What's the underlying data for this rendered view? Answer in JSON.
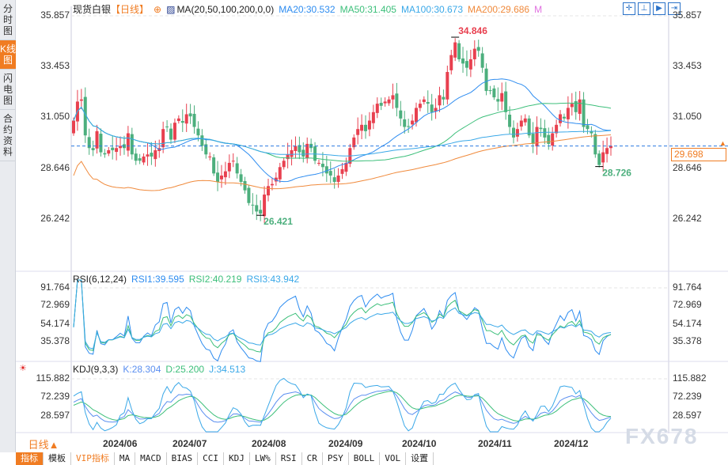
{
  "sidebar": {
    "tabs": [
      {
        "label": "分时图"
      },
      {
        "label": "K线图",
        "active": true
      },
      {
        "label": "闪电图"
      },
      {
        "label": "合约资料"
      }
    ]
  },
  "header": {
    "symbol": "现货白银",
    "period": "【日线】",
    "ma_label": "MA(20,50,100,200,0,0)",
    "ma20": "MA20:30.532",
    "ma50": "MA50:31.405",
    "ma100": "MA100:30.673",
    "ma200": "MA200:29.686",
    "m": "M"
  },
  "colors": {
    "up": "#e8404f",
    "down": "#4caf7d",
    "ma20": "#2d8cf0",
    "ma50": "#3cbf7a",
    "ma100": "#3aa8e8",
    "ma200": "#f08a3c",
    "accent": "#f07c22"
  },
  "tools": [
    "crosshair-icon",
    "zoom-in-icon",
    "zoom-out-icon",
    "scroll-right-icon"
  ],
  "main_axis": {
    "ticks": [
      "35.857",
      "33.453",
      "31.050",
      "28.646",
      "26.242"
    ]
  },
  "current_price": "29.698",
  "annotations": {
    "high": "34.846",
    "low_aug": "26.421",
    "low_dec": "28.726"
  },
  "rsi": {
    "label": "RSI(6,12,24)",
    "rsi1": "RSI1:39.595",
    "rsi2": "RSI2:40.219",
    "rsi3": "RSI3:43.942",
    "ticks": [
      "91.764",
      "72.969",
      "54.174",
      "35.378"
    ]
  },
  "kdj": {
    "label": "KDJ(9,3,3)",
    "k": "K:28.304",
    "d": "D:25.200",
    "j": "J:34.513",
    "ticks": [
      "115.882",
      "72.239",
      "28.597"
    ]
  },
  "dates": [
    "2024/06",
    "2024/07",
    "2024/08",
    "2024/09",
    "2024/10",
    "2024/11",
    "2024/12"
  ],
  "period_selector": "日线▲",
  "toolbar": [
    "指标",
    "模板",
    "VIP指标",
    "MA",
    "MACD",
    "BIAS",
    "CCI",
    "KDJ",
    "LW%",
    "RSI",
    "CR",
    "PSY",
    "BOLL",
    "VOL",
    "设置"
  ],
  "watermark": "FX678",
  "chart_data": {
    "type": "candlestick",
    "price_range": [
      26.242,
      35.857
    ],
    "closes": [
      30.9,
      31.8,
      31.9,
      30.2,
      29.6,
      29.5,
      30.4,
      29.4,
      29.3,
      29.5,
      29.5,
      29.6,
      29.7,
      29.6,
      30.3,
      29.3,
      29.0,
      29.0,
      29.2,
      29.3,
      29.2,
      29.5,
      29.6,
      30.5,
      30.6,
      30.0,
      30.8,
      31.0,
      30.8,
      31.2,
      31.1,
      30.6,
      30.2,
      29.7,
      29.3,
      29.2,
      28.4,
      28.0,
      28.3,
      28.5,
      28.9,
      29.0,
      28.4,
      28.0,
      27.6,
      27.0,
      26.9,
      26.6,
      26.5,
      27.4,
      27.8,
      27.9,
      28.2,
      28.7,
      29.0,
      29.3,
      29.5,
      29.7,
      29.4,
      29.2,
      29.8,
      29.6,
      29.0,
      28.9,
      28.7,
      28.4,
      28.3,
      28.0,
      28.3,
      28.6,
      28.9,
      29.6,
      30.1,
      30.5,
      30.7,
      30.4,
      30.9,
      31.3,
      31.7,
      31.6,
      31.8,
      31.9,
      32.1,
      31.5,
      31.0,
      30.6,
      30.6,
      30.9,
      31.5,
      31.7,
      31.9,
      31.7,
      31.3,
      31.5,
      32.1,
      31.9,
      33.2,
      34.0,
      34.6,
      33.8,
      33.6,
      33.4,
      33.8,
      34.3,
      34.2,
      33.4,
      32.3,
      32.3,
      32.0,
      31.8,
      32.2,
      31.3,
      30.6,
      30.1,
      30.5,
      30.9,
      31.0,
      30.2,
      29.8,
      30.6,
      30.5,
      30.1,
      29.8,
      30.3,
      30.7,
      31.2,
      31.0,
      31.5,
      31.7,
      31.3,
      31.9,
      30.6,
      30.5,
      30.3,
      29.3,
      28.8,
      29.4,
      29.6,
      29.7
    ]
  }
}
